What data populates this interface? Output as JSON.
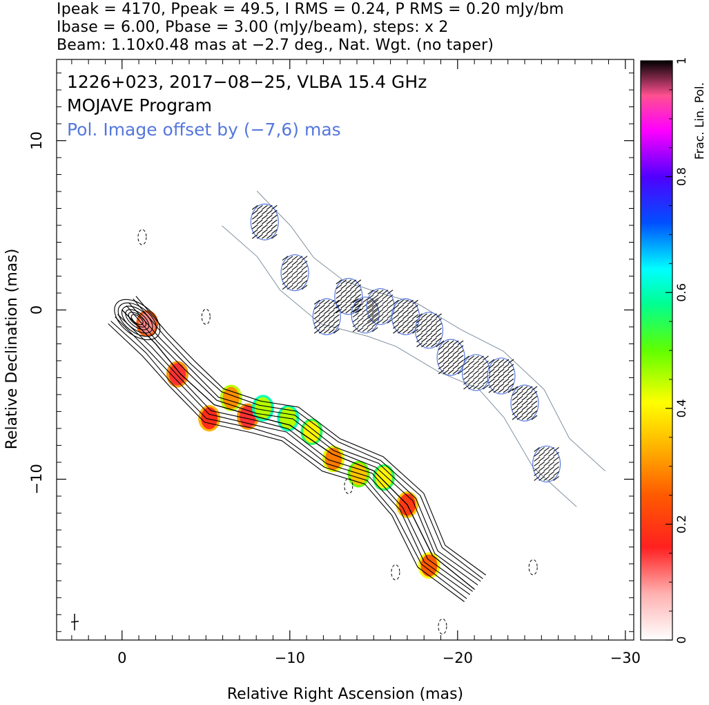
{
  "header": {
    "line1": "Ipeak = 4170, Ppeak = 49.5, I RMS = 0.24, P RMS = 0.20 mJy/bm",
    "line2": "Ibase = 6.00, Pbase = 3.00 (mJy/beam), steps: x 2",
    "line3": "Beam: 1.10x0.48 mas at −2.7 deg., Nat. Wgt. (no taper)"
  },
  "plot": {
    "source_line": "1226+023, 2017−08−25, VLBA 15.4 GHz",
    "program_line": "MOJAVE Program",
    "offset_line": "Pol. Image offset by (−7,6) mas",
    "offset_color": "#5577dd",
    "xlabel": "Relative Right Ascension (mas)",
    "ylabel": "Relative Declination (mas)",
    "xticks": [
      {
        "v": 0,
        "label": "0"
      },
      {
        "v": -10,
        "label": "−10"
      },
      {
        "v": -20,
        "label": "−20"
      },
      {
        "v": -30,
        "label": "−30"
      }
    ],
    "yticks": [
      {
        "v": 10,
        "label": "10"
      },
      {
        "v": 0,
        "label": "0"
      },
      {
        "v": -10,
        "label": "−10"
      }
    ]
  },
  "colorbar": {
    "label": "Frac. Lin. Pol.",
    "ticks": [
      {
        "v": 0,
        "label": "0"
      },
      {
        "v": 0.2,
        "label": "0.2"
      },
      {
        "v": 0.4,
        "label": "0.4"
      },
      {
        "v": 0.6,
        "label": "0.6"
      },
      {
        "v": 0.8,
        "label": "0.8"
      },
      {
        "v": 1,
        "label": "1"
      }
    ]
  },
  "chart_data": {
    "type": "heatmap",
    "title": "1226+023, 2017−08−25, VLBA 15.4 GHz",
    "xlabel": "Relative Right Ascension (mas)",
    "ylabel": "Relative Declination (mas)",
    "xlim": [
      3.9,
      -30.5
    ],
    "ylim": [
      -19.5,
      14.8
    ],
    "ipeak_mJy_per_beam": 4170,
    "ppeak_mJy_per_beam": 49.5,
    "i_rms": 0.24,
    "p_rms": 0.2,
    "ibase": 6.0,
    "pbase": 3.0,
    "contour_steps": "x 2",
    "beam": {
      "major_mas": 1.1,
      "minor_mas": 0.48,
      "pa_deg": -2.7
    },
    "pol_offset_mas": [
      -7,
      6
    ],
    "colorbar": {
      "label": "Frac. Lin. Pol.",
      "range": [
        0,
        1
      ]
    },
    "jet_ridge": [
      [
        0,
        0
      ],
      [
        -2,
        -2
      ],
      [
        -3.5,
        -3.8
      ],
      [
        -5.5,
        -5.6
      ],
      [
        -8,
        -6.3
      ],
      [
        -10,
        -6.8
      ],
      [
        -12.5,
        -8.5
      ],
      [
        -15,
        -9.5
      ],
      [
        -17,
        -11.5
      ],
      [
        -18.5,
        -14.5
      ],
      [
        -21,
        -16.5
      ]
    ],
    "fractional_pol_regions": [
      {
        "ra": -1.5,
        "dec": -0.8,
        "fpol": 0.1
      },
      {
        "ra": -3.3,
        "dec": -3.8,
        "fpol": 0.15
      },
      {
        "ra": -5.2,
        "dec": -6.4,
        "fpol": 0.18
      },
      {
        "ra": -6.5,
        "dec": -5.2,
        "fpol": 0.3
      },
      {
        "ra": -7.5,
        "dec": -6.3,
        "fpol": 0.15
      },
      {
        "ra": -8.4,
        "dec": -5.8,
        "fpol": 0.45
      },
      {
        "ra": -9.9,
        "dec": -6.4,
        "fpol": 0.45
      },
      {
        "ra": -11.3,
        "dec": -7.2,
        "fpol": 0.4
      },
      {
        "ra": -12.6,
        "dec": -8.8,
        "fpol": 0.28
      },
      {
        "ra": -14.1,
        "dec": -9.7,
        "fpol": 0.35
      },
      {
        "ra": -15.6,
        "dec": -9.9,
        "fpol": 0.4
      },
      {
        "ra": -17.0,
        "dec": -11.5,
        "fpol": 0.2
      },
      {
        "ra": -18.3,
        "dec": -15.1,
        "fpol": 0.25
      }
    ]
  }
}
